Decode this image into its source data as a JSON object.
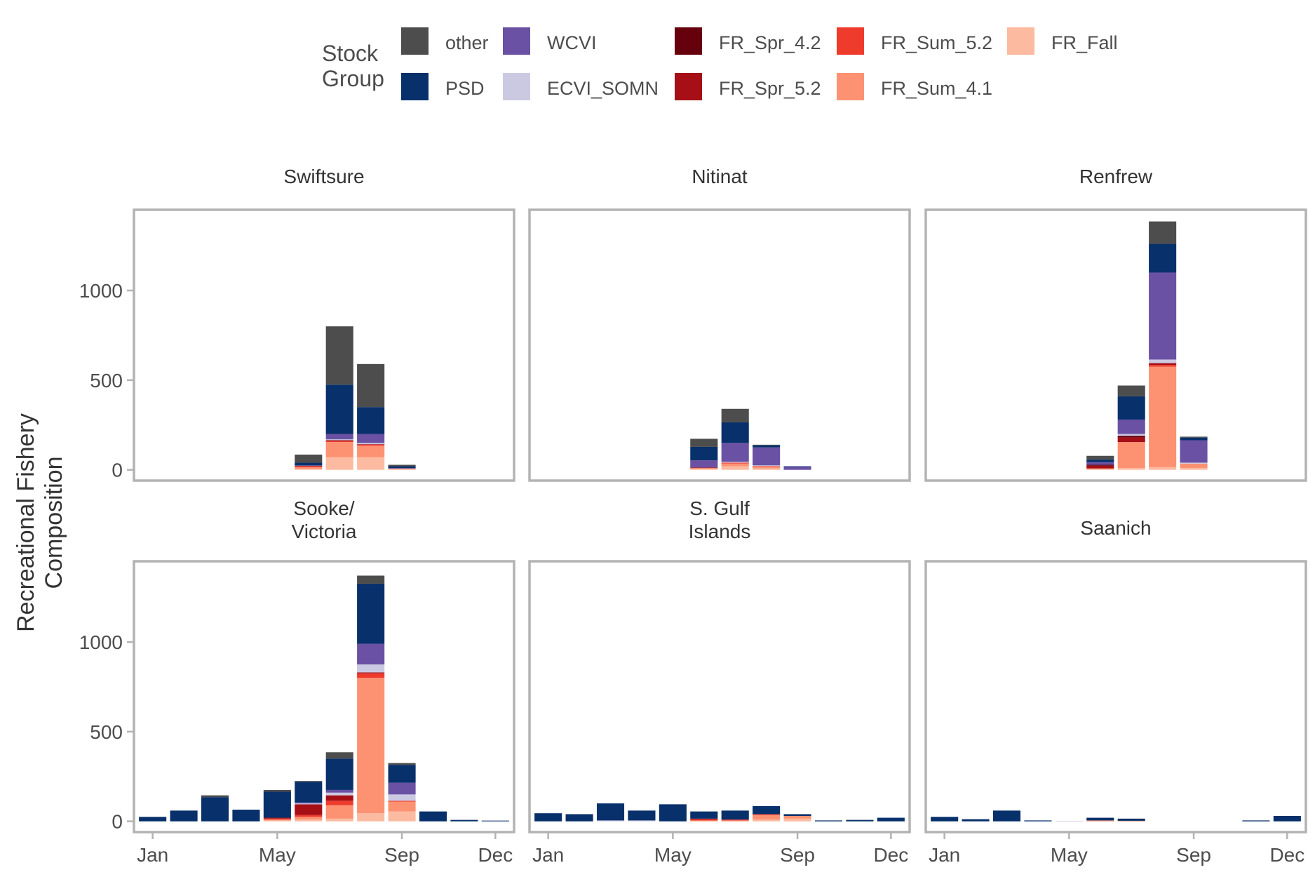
{
  "chart_data": {
    "type": "bar",
    "stacked": true,
    "ylabel": "Recreational Fishery Composition",
    "ylim": [
      -60,
      1450
    ],
    "yticks": [
      0,
      500,
      1000
    ],
    "xtick_months": [
      1,
      5,
      9,
      12
    ],
    "xtick_labels": [
      "Jan",
      "May",
      "Sep",
      "Dec"
    ],
    "legend": {
      "title_lines": [
        "Stock",
        "Group"
      ],
      "position": "top",
      "entries": [
        {
          "key": "other",
          "label": "other",
          "color": "#4d4d4d"
        },
        {
          "key": "PSD",
          "label": "PSD",
          "color": "#08306b"
        },
        {
          "key": "WCVI",
          "label": "WCVI",
          "color": "#6a51a3"
        },
        {
          "key": "ECVI_SOMN",
          "label": "ECVI_SOMN",
          "color": "#cbc9e2"
        },
        {
          "key": "FR_Spr_4.2",
          "label": "FR_Spr_4.2",
          "color": "#67000d"
        },
        {
          "key": "FR_Spr_5.2",
          "label": "FR_Spr_5.2",
          "color": "#a50f15"
        },
        {
          "key": "FR_Sum_5.2",
          "label": "FR_Sum_5.2",
          "color": "#ef3b2c"
        },
        {
          "key": "FR_Sum_4.1",
          "label": "FR_Sum_4.1",
          "color": "#fc9272"
        },
        {
          "key": "FR_Fall",
          "label": "FR_Fall",
          "color": "#fcbba1"
        }
      ]
    },
    "stack_order_bottom_to_top": [
      "FR_Fall",
      "FR_Sum_4.1",
      "FR_Sum_5.2",
      "FR_Spr_5.2",
      "FR_Spr_4.2",
      "ECVI_SOMN",
      "WCVI",
      "PSD",
      "other"
    ],
    "panels": [
      {
        "title_lines": [
          "Swiftsure"
        ],
        "bars": [
          {
            "month": 6,
            "values": {
              "FR_Fall": 5,
              "FR_Sum_4.1": 10,
              "FR_Sum_5.2": 5,
              "FR_Spr_5.2": 3,
              "WCVI": 2,
              "PSD": 15,
              "other": 45
            }
          },
          {
            "month": 7,
            "values": {
              "FR_Fall": 70,
              "FR_Sum_4.1": 85,
              "FR_Sum_5.2": 5,
              "FR_Spr_5.2": 5,
              "ECVI_SOMN": 5,
              "WCVI": 30,
              "PSD": 275,
              "other": 325
            }
          },
          {
            "month": 8,
            "values": {
              "FR_Fall": 70,
              "FR_Sum_4.1": 65,
              "FR_Sum_5.2": 5,
              "FR_Spr_5.2": 3,
              "ECVI_SOMN": 7,
              "WCVI": 50,
              "PSD": 150,
              "other": 240
            }
          },
          {
            "month": 9,
            "values": {
              "FR_Fall": 3,
              "FR_Sum_4.1": 5,
              "WCVI": 2,
              "PSD": 10,
              "other": 8
            }
          }
        ]
      },
      {
        "title_lines": [
          "Nitinat"
        ],
        "bars": [
          {
            "month": 6,
            "values": {
              "FR_Fall": 5,
              "FR_Sum_4.1": 5,
              "FR_Spr_5.2": 3,
              "WCVI": 40,
              "PSD": 75,
              "other": 45
            }
          },
          {
            "month": 7,
            "values": {
              "FR_Fall": 20,
              "FR_Sum_4.1": 15,
              "FR_Sum_5.2": 5,
              "ECVI_SOMN": 5,
              "WCVI": 105,
              "PSD": 115,
              "other": 75
            }
          },
          {
            "month": 8,
            "values": {
              "FR_Fall": 8,
              "FR_Sum_4.1": 10,
              "FR_Sum_5.2": 3,
              "ECVI_SOMN": 4,
              "WCVI": 100,
              "PSD": 12,
              "other": 3
            }
          },
          {
            "month": 9,
            "values": {
              "WCVI": 18,
              "PSD": 2
            }
          }
        ]
      },
      {
        "title_lines": [
          "Renfrew"
        ],
        "bars": [
          {
            "month": 6,
            "values": {
              "FR_Fall": 3,
              "FR_Sum_4.1": 5,
              "FR_Spr_5.2": 15,
              "FR_Spr_4.2": 5,
              "WCVI": 15,
              "PSD": 15,
              "other": 20
            }
          },
          {
            "month": 7,
            "values": {
              "FR_Fall": 10,
              "FR_Sum_4.1": 145,
              "FR_Spr_5.2": 25,
              "FR_Spr_4.2": 10,
              "ECVI_SOMN": 10,
              "WCVI": 80,
              "PSD": 130,
              "other": 60
            }
          },
          {
            "month": 8,
            "values": {
              "FR_Fall": 15,
              "FR_Sum_4.1": 560,
              "FR_Sum_5.2": 10,
              "FR_Spr_5.2": 10,
              "ECVI_SOMN": 20,
              "WCVI": 485,
              "PSD": 160,
              "other": 125
            }
          },
          {
            "month": 9,
            "values": {
              "FR_Fall": 10,
              "FR_Sum_4.1": 25,
              "ECVI_SOMN": 5,
              "WCVI": 125,
              "PSD": 15,
              "other": 5
            }
          }
        ]
      },
      {
        "title_lines": [
          "Sooke/",
          "Victoria"
        ],
        "bars": [
          {
            "month": 1,
            "values": {
              "PSD": 25
            }
          },
          {
            "month": 2,
            "values": {
              "PSD": 60
            }
          },
          {
            "month": 3,
            "values": {
              "PSD": 135,
              "other": 10
            }
          },
          {
            "month": 4,
            "values": {
              "PSD": 65
            }
          },
          {
            "month": 5,
            "values": {
              "FR_Fall": 5,
              "FR_Sum_4.1": 5,
              "FR_Sum_5.2": 5,
              "FR_Spr_5.2": 5,
              "PSD": 145,
              "other": 10
            }
          },
          {
            "month": 6,
            "values": {
              "FR_Fall": 10,
              "FR_Sum_4.1": 15,
              "FR_Sum_5.2": 10,
              "FR_Spr_5.2": 60,
              "ECVI_SOMN": 5,
              "WCVI": 5,
              "PSD": 115,
              "other": 5
            }
          },
          {
            "month": 7,
            "values": {
              "FR_Fall": 15,
              "FR_Sum_4.1": 75,
              "FR_Sum_5.2": 25,
              "FR_Spr_5.2": 30,
              "ECVI_SOMN": 15,
              "WCVI": 15,
              "PSD": 175,
              "other": 35
            }
          },
          {
            "month": 8,
            "values": {
              "FR_Fall": 45,
              "FR_Sum_4.1": 755,
              "FR_Sum_5.2": 25,
              "FR_Spr_5.2": 5,
              "ECVI_SOMN": 45,
              "WCVI": 115,
              "PSD": 335,
              "other": 45
            }
          },
          {
            "month": 9,
            "values": {
              "FR_Fall": 55,
              "FR_Sum_4.1": 55,
              "FR_Sum_5.2": 5,
              "ECVI_SOMN": 35,
              "WCVI": 65,
              "PSD": 100,
              "other": 10
            }
          },
          {
            "month": 10,
            "values": {
              "PSD": 55
            }
          },
          {
            "month": 11,
            "values": {
              "PSD": 8
            }
          },
          {
            "month": 12,
            "values": {
              "PSD": 4
            }
          }
        ]
      },
      {
        "title_lines": [
          "S. Gulf",
          "Islands"
        ],
        "bars": [
          {
            "month": 1,
            "values": {
              "PSD": 45
            }
          },
          {
            "month": 2,
            "values": {
              "PSD": 40
            }
          },
          {
            "month": 3,
            "values": {
              "ECVI_SOMN": 5,
              "PSD": 95
            }
          },
          {
            "month": 4,
            "values": {
              "ECVI_SOMN": 5,
              "PSD": 55
            }
          },
          {
            "month": 5,
            "values": {
              "PSD": 95
            }
          },
          {
            "month": 6,
            "values": {
              "FR_Sum_4.1": 5,
              "FR_Sum_5.2": 5,
              "FR_Spr_5.2": 5,
              "PSD": 40
            }
          },
          {
            "month": 7,
            "values": {
              "FR_Sum_4.1": 5,
              "FR_Sum_5.2": 5,
              "PSD": 50
            }
          },
          {
            "month": 8,
            "values": {
              "FR_Fall": 10,
              "FR_Sum_4.1": 25,
              "FR_Sum_5.2": 5,
              "PSD": 45
            }
          },
          {
            "month": 9,
            "values": {
              "FR_Fall": 15,
              "FR_Sum_4.1": 15,
              "PSD": 10
            }
          },
          {
            "month": 10,
            "values": {
              "PSD": 5
            }
          },
          {
            "month": 11,
            "values": {
              "PSD": 8
            }
          },
          {
            "month": 12,
            "values": {
              "PSD": 20
            }
          }
        ]
      },
      {
        "title_lines": [
          "Saanich"
        ],
        "bars": [
          {
            "month": 1,
            "values": {
              "PSD": 25
            }
          },
          {
            "month": 2,
            "values": {
              "PSD": 12
            }
          },
          {
            "month": 3,
            "values": {
              "PSD": 60
            }
          },
          {
            "month": 4,
            "values": {
              "PSD": 5
            }
          },
          {
            "month": 5,
            "values": {
              "ECVI_SOMN": 3
            }
          },
          {
            "month": 6,
            "values": {
              "FR_Sum_4.1": 5,
              "PSD": 15
            }
          },
          {
            "month": 7,
            "values": {
              "FR_Sum_4.1": 3,
              "PSD": 12
            }
          },
          {
            "month": 11,
            "values": {
              "PSD": 5
            }
          },
          {
            "month": 12,
            "values": {
              "PSD": 30
            }
          }
        ]
      }
    ]
  }
}
